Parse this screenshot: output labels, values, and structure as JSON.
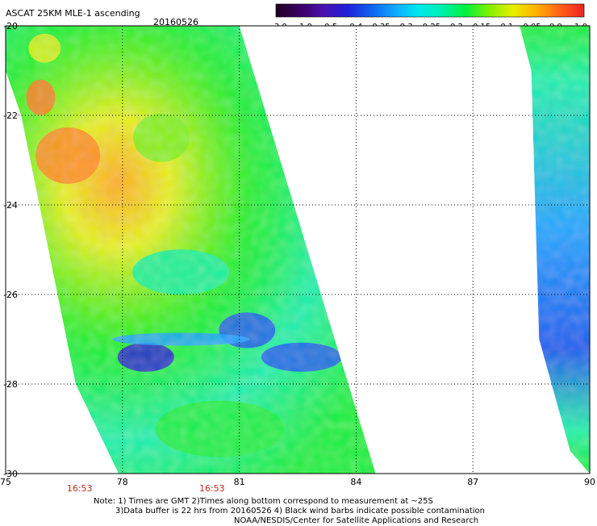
{
  "header": {
    "title": "ASCAT 25KM MLE-1 ascending",
    "date": "20160526"
  },
  "colorbar": {
    "ticks": [
      "-3.0",
      "-1.0",
      "-0.5",
      "-0.4",
      "-0.35",
      "-0.3",
      "-0.25",
      "-0.2",
      "-0.15",
      "-0.1",
      "-0.05",
      "0.0",
      "1.0"
    ],
    "colors": [
      "#200020",
      "#3a0060",
      "#4a10b0",
      "#2020d8",
      "#1060f0",
      "#10a8ff",
      "#00e8f0",
      "#00f0b0",
      "#00f040",
      "#80f000",
      "#e8f000",
      "#ffb000",
      "#ff6018",
      "#f02020"
    ]
  },
  "map": {
    "lon_ticks": [
      "75",
      "78",
      "81",
      "84",
      "87",
      "90"
    ],
    "lat_ticks": [
      "-20",
      "-22",
      "-24",
      "-26",
      "-28",
      "-30"
    ],
    "lon_range": [
      75,
      90
    ],
    "lat_range": [
      -30,
      -20
    ],
    "time_labels": [
      {
        "text": "16:53",
        "lon": 76.9
      },
      {
        "text": "16:53",
        "lon": 80.3
      }
    ],
    "swaths": [
      {
        "name": "west-swath",
        "polygon": [
          [
            75,
            -20
          ],
          [
            81,
            -20
          ],
          [
            84.5,
            -30
          ],
          [
            77.9,
            -30
          ],
          [
            76.8,
            -28
          ],
          [
            75.4,
            -22
          ],
          [
            75,
            -21
          ]
        ]
      },
      {
        "name": "east-swath",
        "polygon": [
          [
            88.2,
            -20
          ],
          [
            90,
            -20
          ],
          [
            90,
            -30
          ],
          [
            89.5,
            -29.5
          ],
          [
            88.7,
            -27
          ],
          [
            88.6,
            -24
          ],
          [
            88.5,
            -21
          ]
        ]
      }
    ]
  },
  "notes": [
    "Note: 1) Times are GMT 2)Times along bottom correspond to measurement at ~25S",
    "3)Data buffer is 22 hrs from 20160526 4) Black wind barbs indicate possible contamination",
    "NOAA/NESDIS/Center for Satellite Applications and Research"
  ]
}
